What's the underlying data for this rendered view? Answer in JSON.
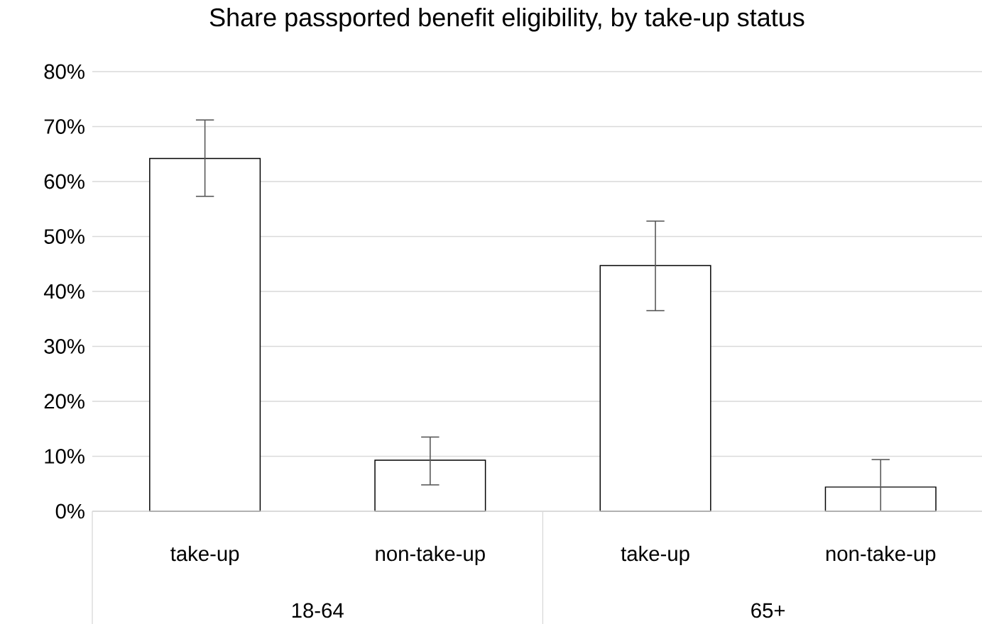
{
  "chart_data": {
    "type": "bar",
    "title": "Share passported benefit eligibility, by take-up status",
    "categories": [
      "take-up",
      "non-take-up",
      "take-up",
      "non-take-up"
    ],
    "values": [
      64.2,
      9.3,
      44.7,
      4.4
    ],
    "errors": [
      [
        57.3,
        71.2
      ],
      [
        4.8,
        13.5
      ],
      [
        36.5,
        52.8
      ],
      [
        0,
        9.4
      ]
    ],
    "color": "#ffffff",
    "annotations": [
      "18-64",
      "65+"
    ],
    "ylim": [
      0,
      80
    ],
    "yticks": [
      {
        "value": 0,
        "label": "0%"
      },
      {
        "value": 10,
        "label": "10%"
      },
      {
        "value": 20,
        "label": "20%"
      },
      {
        "value": 30,
        "label": "30%"
      },
      {
        "value": 40,
        "label": "40%"
      },
      {
        "value": 50,
        "label": "50%"
      },
      {
        "value": 60,
        "label": "60%"
      },
      {
        "value": 70,
        "label": "70%"
      },
      {
        "value": 80,
        "label": "80%"
      }
    ],
    "grid": "y"
  }
}
